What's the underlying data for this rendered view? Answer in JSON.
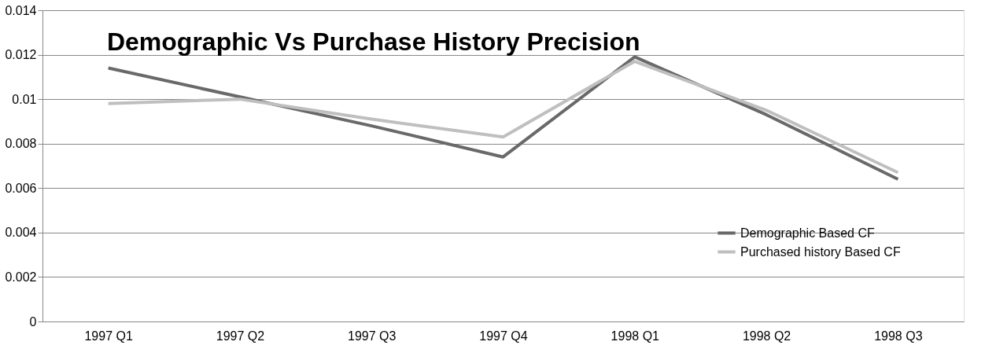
{
  "chart_data": {
    "type": "line",
    "title": "Demographic Vs Purchase History Precision",
    "categories": [
      "1997 Q1",
      "1997 Q2",
      "1997 Q3",
      "1997 Q4",
      "1998 Q1",
      "1998 Q2",
      "1998 Q3"
    ],
    "series": [
      {
        "name": "Demographic Based CF",
        "color": "#696969",
        "values": [
          0.0114,
          0.0101,
          0.0088,
          0.0074,
          0.0119,
          0.0093,
          0.0064
        ]
      },
      {
        "name": "Purchased history Based CF",
        "color": "#bfbfbf",
        "values": [
          0.0098,
          0.01,
          0.0091,
          0.0083,
          0.0117,
          0.0095,
          0.0067
        ]
      }
    ],
    "ylim": [
      0,
      0.014
    ],
    "yticks": [
      0,
      0.002,
      0.004,
      0.006,
      0.008,
      0.01,
      0.012,
      0.014
    ],
    "grid": "y",
    "legend": "bottom right",
    "marker": "none",
    "line_style": "solid"
  }
}
